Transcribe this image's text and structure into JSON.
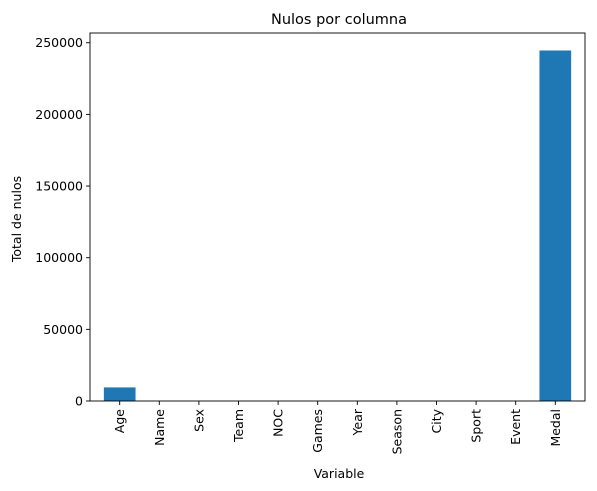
{
  "chart_data": {
    "type": "bar",
    "title": "Nulos por columna",
    "xlabel": "Variable",
    "ylabel": "Total de nulos",
    "categories": [
      "Age",
      "Name",
      "Sex",
      "Team",
      "NOC",
      "Games",
      "Year",
      "Season",
      "City",
      "Sport",
      "Event",
      "Medal"
    ],
    "values": [
      9474,
      0,
      0,
      0,
      0,
      0,
      0,
      0,
      0,
      0,
      0,
      244587
    ],
    "ylim": [
      0,
      256800
    ],
    "yticks": [
      0,
      50000,
      100000,
      150000,
      200000,
      250000
    ],
    "grid": false,
    "legend": "none",
    "bar_color": "#1f77b4"
  }
}
